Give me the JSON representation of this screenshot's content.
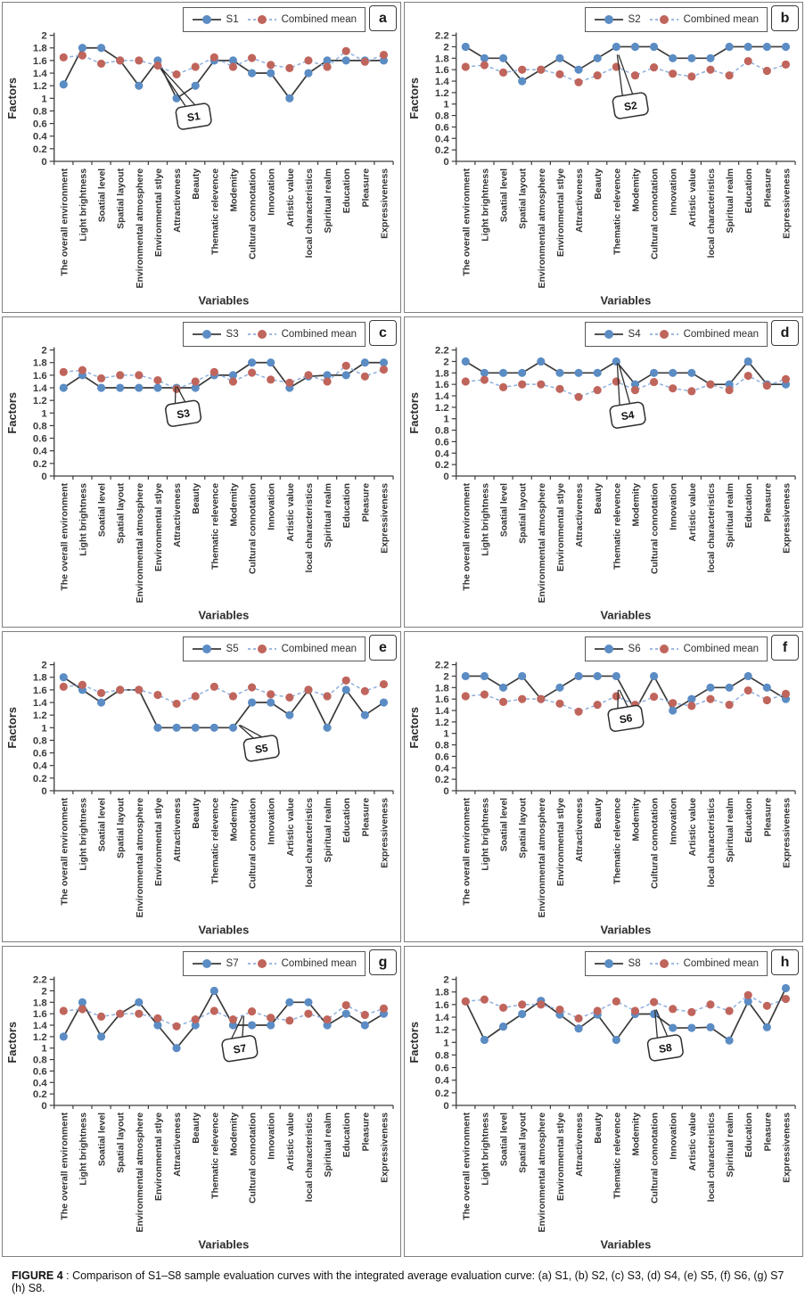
{
  "caption": {
    "bold": "FIGURE 4",
    "text": " : Comparison of S1–S8 sample evaluation curves with the integrated average evaluation curve: (a) S1, (b) S2, (c) S3, (d) S4, (e) S5, (f) S6, (g) S7 (h) S8."
  },
  "style": {
    "series_line_color": "#3a3a3a",
    "series_marker_color": "#5b8cc4",
    "mean_line_color": "#8fafdc",
    "mean_marker_color": "#c0655c",
    "mean_dash": "4 3",
    "panel_border_color": "#7f7f7f"
  },
  "chart_data": {
    "type": "line",
    "xlabel": "Variables",
    "ylabel": "Factors",
    "ytick_step": 0.2,
    "grid": false,
    "legend_position": "top-right",
    "categories": [
      "The overall environment",
      "Light brightness",
      "Soatial level",
      "Spatial layout",
      "Environmental atmosphere",
      "Environmental stlye",
      "Attractiveness",
      "Beauty",
      "Thematic relevence",
      "Modemity",
      "Cultural connotation",
      "Innovation",
      "Artistic value",
      "local characteristics",
      "Spiritual realm",
      "Education",
      "Pleasure",
      "Expressiveness"
    ],
    "combined_mean": {
      "name": "Combined mean",
      "values": [
        1.65,
        1.68,
        1.55,
        1.6,
        1.6,
        1.52,
        1.38,
        1.5,
        1.65,
        1.5,
        1.64,
        1.53,
        1.48,
        1.6,
        1.5,
        1.75,
        1.58,
        1.69
      ]
    },
    "panels": [
      {
        "letter": "a",
        "series": "S1",
        "ylim": [
          0,
          2
        ],
        "values": [
          1.22,
          1.8,
          1.8,
          1.6,
          1.2,
          1.6,
          1.0,
          1.2,
          1.6,
          1.6,
          1.4,
          1.4,
          1.0,
          1.4,
          1.6,
          1.6,
          1.6,
          1.6
        ],
        "callout": {
          "label": "S1",
          "anchor_index": 5.15,
          "anchor_value": 1.47,
          "box_index": 6.9,
          "box_value": 0.72
        }
      },
      {
        "letter": "b",
        "series": "S2",
        "ylim": [
          0,
          2.2
        ],
        "values": [
          2.0,
          1.8,
          1.8,
          1.4,
          1.6,
          1.8,
          1.6,
          1.8,
          2.0,
          2.0,
          2.0,
          1.8,
          1.8,
          1.8,
          2.0,
          2.0,
          2.0,
          2.0
        ],
        "callout": {
          "label": "S2",
          "anchor_index": 8.05,
          "anchor_value": 1.86,
          "box_index": 8.75,
          "box_value": 0.98
        }
      },
      {
        "letter": "c",
        "series": "S3",
        "ylim": [
          0,
          2
        ],
        "values": [
          1.4,
          1.6,
          1.4,
          1.4,
          1.4,
          1.4,
          1.4,
          1.4,
          1.6,
          1.6,
          1.8,
          1.8,
          1.4,
          1.58,
          1.6,
          1.6,
          1.8,
          1.8
        ],
        "callout": {
          "label": "S3",
          "anchor_index": 5.95,
          "anchor_value": 1.42,
          "box_index": 6.35,
          "box_value": 1.0
        }
      },
      {
        "letter": "d",
        "series": "S4",
        "ylim": [
          0,
          2.2
        ],
        "values": [
          2.0,
          1.8,
          1.8,
          1.8,
          2.0,
          1.8,
          1.8,
          1.8,
          2.0,
          1.6,
          1.8,
          1.8,
          1.8,
          1.6,
          1.6,
          2.0,
          1.6,
          1.6
        ],
        "callout": {
          "label": "S4",
          "anchor_index": 8.05,
          "anchor_value": 1.97,
          "box_index": 8.6,
          "box_value": 1.07
        }
      },
      {
        "letter": "e",
        "series": "S5",
        "ylim": [
          0,
          2
        ],
        "values": [
          1.8,
          1.6,
          1.4,
          1.6,
          1.6,
          1.0,
          1.0,
          1.0,
          1.0,
          1.0,
          1.4,
          1.4,
          1.2,
          1.6,
          1.0,
          1.6,
          1.2,
          1.4
        ],
        "callout": {
          "label": "S5",
          "anchor_index": 9.3,
          "anchor_value": 1.04,
          "box_index": 10.5,
          "box_value": 0.68
        }
      },
      {
        "letter": "f",
        "series": "S6",
        "ylim": [
          0,
          2.2
        ],
        "values": [
          2.0,
          2.0,
          1.8,
          2.0,
          1.6,
          1.8,
          2.0,
          2.0,
          2.0,
          1.4,
          2.0,
          1.4,
          1.6,
          1.8,
          1.8,
          2.0,
          1.8,
          1.6
        ],
        "callout": {
          "label": "S6",
          "anchor_index": 8.1,
          "anchor_value": 1.76,
          "box_index": 8.5,
          "box_value": 1.27
        }
      },
      {
        "letter": "g",
        "series": "S7",
        "ylim": [
          0,
          2.2
        ],
        "values": [
          1.2,
          1.8,
          1.2,
          1.6,
          1.8,
          1.4,
          1.0,
          1.4,
          2.0,
          1.4,
          1.4,
          1.4,
          1.8,
          1.8,
          1.4,
          1.6,
          1.4,
          1.6
        ],
        "callout": {
          "label": "S7",
          "anchor_index": 9.5,
          "anchor_value": 1.56,
          "box_index": 9.35,
          "box_value": 1.0
        }
      },
      {
        "letter": "h",
        "series": "S8",
        "ylim": [
          0,
          2
        ],
        "values": [
          1.65,
          1.04,
          1.25,
          1.45,
          1.66,
          1.44,
          1.22,
          1.44,
          1.04,
          1.45,
          1.45,
          1.23,
          1.23,
          1.24,
          1.03,
          1.65,
          1.24,
          1.86
        ],
        "callout": {
          "label": "S8",
          "anchor_index": 10.05,
          "anchor_value": 1.52,
          "box_index": 10.6,
          "box_value": 0.92
        }
      }
    ]
  }
}
